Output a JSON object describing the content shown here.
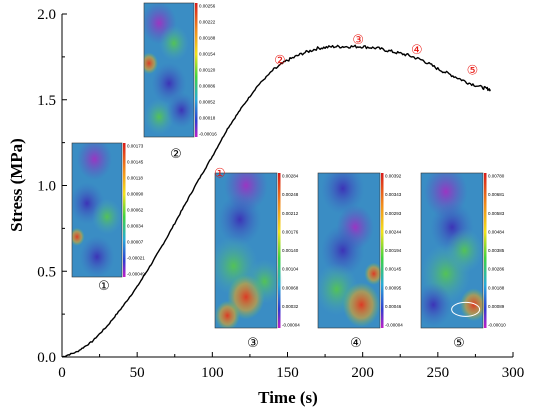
{
  "chart_data": {
    "type": "line",
    "title": "",
    "xlabel": "Time (s)",
    "ylabel": "Stress (MPa)",
    "xlim": [
      0,
      300
    ],
    "ylim": [
      0,
      2.0
    ],
    "xticks": [
      "0",
      "50",
      "100",
      "150",
      "200",
      "250",
      "300"
    ],
    "yticks": [
      "0.0",
      "0.5",
      "1.0",
      "1.5",
      "2.0"
    ],
    "grid": false,
    "line_color": "#000000",
    "series": [
      {
        "x": [
          0,
          10,
          20,
          30,
          40,
          50,
          60,
          70,
          80,
          90,
          100,
          110,
          120,
          130,
          140,
          150,
          160,
          170,
          180,
          190,
          200,
          210,
          220,
          230,
          240,
          250,
          260,
          270,
          280,
          285
        ],
        "values": [
          0.0,
          0.03,
          0.09,
          0.18,
          0.29,
          0.41,
          0.55,
          0.7,
          0.86,
          1.02,
          1.17,
          1.33,
          1.46,
          1.58,
          1.67,
          1.73,
          1.77,
          1.8,
          1.81,
          1.81,
          1.81,
          1.8,
          1.78,
          1.76,
          1.73,
          1.68,
          1.64,
          1.6,
          1.57,
          1.56
        ]
      }
    ],
    "markers": [
      {
        "label": "①",
        "x": 101,
        "y": 1.1
      },
      {
        "label": "②",
        "x": 149,
        "y": 1.71
      },
      {
        "label": "③",
        "x": 197,
        "y": 1.82
      },
      {
        "label": "④",
        "x": 236,
        "y": 1.76
      },
      {
        "label": "⑤",
        "x": 273,
        "y": 1.64
      }
    ],
    "marker_color": "#e8150f",
    "insets": [
      {
        "caption": "②",
        "colorbar": [
          "0.00256",
          "0.00222",
          "0.00188",
          "0.00154",
          "0.00120",
          "0.00086",
          "0.00052",
          "0.00018",
          "-0.00016"
        ]
      },
      {
        "caption": "①",
        "colorbar": [
          "0.00173",
          "0.00145",
          "0.00118",
          "0.00090",
          "0.00062",
          "0.00034",
          "0.00007",
          "-0.00021",
          "-0.00049"
        ]
      },
      {
        "caption": "③",
        "colorbar": [
          "0.00284",
          "0.00248",
          "0.00212",
          "0.00176",
          "0.00140",
          "0.00104",
          "0.00068",
          "0.00032",
          "-0.00004"
        ]
      },
      {
        "caption": "④",
        "colorbar": [
          "0.00392",
          "0.00343",
          "0.00293",
          "0.00244",
          "0.00194",
          "0.00145",
          "0.00095",
          "0.00046",
          "-0.00004"
        ]
      },
      {
        "caption": "⑤",
        "colorbar": [
          "0.00780",
          "0.00681",
          "0.00583",
          "0.00484",
          "0.00385",
          "0.00286",
          "0.00188",
          "0.00089",
          "-0.00010"
        ]
      }
    ]
  }
}
